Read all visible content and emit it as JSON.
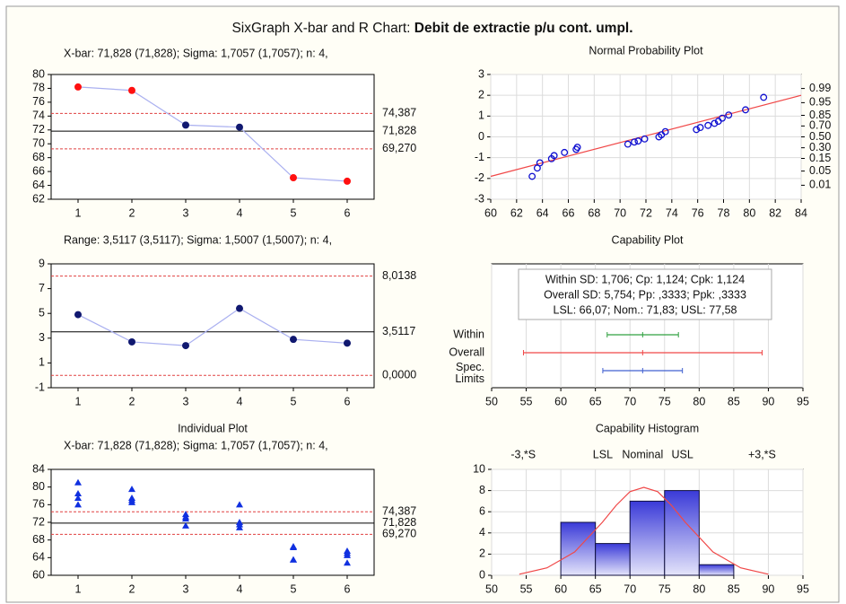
{
  "title_prefix": "SixGraph X-bar and R Chart:",
  "title_main": "Debit de extractie p/u cont. umpl.",
  "chart_data": [
    {
      "type": "control",
      "subtitle": "X-bar: 71,828 (71,828); Sigma: 1,7057 (1,7057); n: 4,",
      "categories": [
        1,
        2,
        3,
        4,
        5,
        6
      ],
      "values": [
        78.2,
        77.7,
        72.7,
        72.4,
        65.1,
        64.6
      ],
      "colors": [
        "#ff1010",
        "#ff1010",
        "#101870",
        "#101870",
        "#ff1010",
        "#ff1010"
      ],
      "line_color": "#aab0f0",
      "ylim": [
        62,
        80
      ],
      "yticks": [
        62,
        64,
        66,
        68,
        70,
        72,
        74,
        76,
        78,
        80
      ],
      "limits": [
        {
          "value": 74.387,
          "label": "74,387"
        },
        {
          "value": 71.828,
          "label": "71,828"
        },
        {
          "value": 69.27,
          "label": "69,270"
        }
      ],
      "limit_colors": [
        "#e04040",
        "#000000",
        "#e04040"
      ]
    },
    {
      "type": "normal_probability",
      "title": "Normal Probability Plot",
      "x": [
        63.2,
        63.6,
        63.8,
        64.7,
        64.9,
        65.7,
        66.6,
        66.7,
        70.6,
        71.1,
        71.4,
        71.9,
        73.0,
        73.2,
        73.5,
        75.9,
        76.2,
        76.8,
        77.3,
        77.6,
        77.9,
        78.4,
        79.7,
        81.1
      ],
      "y": [
        -1.9,
        -1.5,
        -1.25,
        -1.05,
        -0.9,
        -0.75,
        -0.6,
        -0.5,
        -0.35,
        -0.25,
        -0.2,
        -0.1,
        0.0,
        0.1,
        0.25,
        0.35,
        0.45,
        0.55,
        0.65,
        0.75,
        0.9,
        1.05,
        1.3,
        1.9
      ],
      "color": "#1010d0",
      "fit_line": {
        "x": [
          60,
          84
        ],
        "y": [
          -1.9,
          2.0
        ],
        "color": "#f04848"
      },
      "xlim": [
        60,
        84
      ],
      "xticks": [
        60,
        62,
        64,
        66,
        68,
        70,
        72,
        74,
        76,
        78,
        80,
        82,
        84
      ],
      "ylim": [
        -3,
        3
      ],
      "yticks": [
        -3,
        -2,
        -1,
        0,
        1,
        2,
        3
      ],
      "y2ticks": [
        0.99,
        0.95,
        0.85,
        {
          "value": 0.7,
          "label": "0.70"
        },
        {
          "value": 0.5,
          "label": "0.50"
        },
        {
          "value": 0.3,
          "label": "0.30"
        },
        0.15,
        0.05,
        0.01
      ],
      "grid": true
    },
    {
      "type": "control",
      "subtitle": "Range: 3,5117 (3,5117); Sigma: 1,5007 (1,5007); n: 4,",
      "categories": [
        1,
        2,
        3,
        4,
        5,
        6
      ],
      "values": [
        4.9,
        2.7,
        2.4,
        5.4,
        2.9,
        2.6
      ],
      "colors": [
        "#101870",
        "#101870",
        "#101870",
        "#101870",
        "#101870",
        "#101870"
      ],
      "line_color": "#aab0f0",
      "ylim": [
        -1,
        9
      ],
      "yticks": [
        -1,
        1,
        3,
        5,
        7,
        9
      ],
      "limits": [
        {
          "value": 8.0138,
          "label": "8,0138"
        },
        {
          "value": 3.5117,
          "label": "3,5117"
        },
        {
          "value": 0,
          "label": "0,0000"
        }
      ],
      "limit_colors": [
        "#e04040",
        "#000000",
        "#e04040"
      ]
    },
    {
      "type": "capability",
      "title": "Capability Plot",
      "notes": [
        "Within SD: 1,706; Cp: 1,124; Cpk: 1,124",
        "Overall SD: 5,754; Pp: ,3333; Ppk: ,3333",
        "LSL: 66,07; Nom.: 71,83; USL: 77,58"
      ],
      "rows": [
        {
          "label": [
            "Within"
          ],
          "low": 66.7,
          "center": 71.83,
          "high": 77.0,
          "color": "#30a040"
        },
        {
          "label": [
            "Overall"
          ],
          "low": 54.6,
          "center": 71.83,
          "high": 89.1,
          "color": "#f04848"
        },
        {
          "label": [
            "Spec.",
            "Limits"
          ],
          "low": 66.07,
          "center": 71.83,
          "high": 77.58,
          "color": "#4060d0"
        }
      ],
      "xlim": [
        50,
        95
      ],
      "xticks": [
        50,
        55,
        60,
        65,
        70,
        75,
        80,
        85,
        90,
        95
      ],
      "grid": true
    },
    {
      "type": "individual",
      "title": "Individual Plot",
      "subtitle": "X-bar: 71,828 (71,828); Sigma: 1,7057 (1,7057); n: 4,",
      "categories": [
        1,
        2,
        3,
        4,
        5,
        6
      ],
      "values": [
        [
          81,
          78.5,
          77.5,
          76
        ],
        [
          79.5,
          77.5,
          77,
          76.5
        ],
        [
          73.8,
          73.2,
          72.8,
          71.2
        ],
        [
          76,
          72,
          71.5,
          70.8
        ],
        [
          66.5,
          66.3,
          63.5,
          63.5
        ],
        [
          65.5,
          65,
          64.5,
          62.8
        ]
      ],
      "color": "#1030e0",
      "ylim": [
        60,
        84
      ],
      "yticks": [
        60,
        64,
        68,
        72,
        76,
        80,
        84
      ],
      "limits": [
        {
          "value": 74.387,
          "label": "74,387"
        },
        {
          "value": 71.828,
          "label": "71,828"
        },
        {
          "value": 69.27,
          "label": "69,270"
        }
      ],
      "limit_colors": [
        "#e04040",
        "#000000",
        "#e04040"
      ]
    },
    {
      "type": "histogram",
      "title": "Capability Histogram",
      "bins": [
        60,
        65,
        70,
        75,
        80,
        85
      ],
      "counts": [
        5,
        3,
        7,
        8,
        1
      ],
      "curve": {
        "x": [
          54,
          58,
          62,
          66,
          68,
          70,
          72,
          74,
          76,
          78,
          82,
          86,
          90
        ],
        "y": [
          0.1,
          0.7,
          2.2,
          5.0,
          6.6,
          7.9,
          8.3,
          7.9,
          6.6,
          5.0,
          2.2,
          0.7,
          0.1
        ],
        "color": "#f04848"
      },
      "markers": [
        {
          "label": "-3,*S",
          "x": 54.57
        },
        {
          "label": "LSL",
          "x": 66.07
        },
        {
          "label": "Nominal",
          "x": 71.83
        },
        {
          "label": "USL",
          "x": 77.58
        },
        {
          "label": "+3,*S",
          "x": 89.09
        }
      ],
      "xlim": [
        50,
        95
      ],
      "xticks": [
        50,
        55,
        60,
        65,
        70,
        75,
        80,
        85,
        90,
        95
      ],
      "ylim": [
        0,
        10
      ],
      "yticks": [
        0,
        2,
        4,
        6,
        8,
        10
      ],
      "grid": true
    }
  ]
}
